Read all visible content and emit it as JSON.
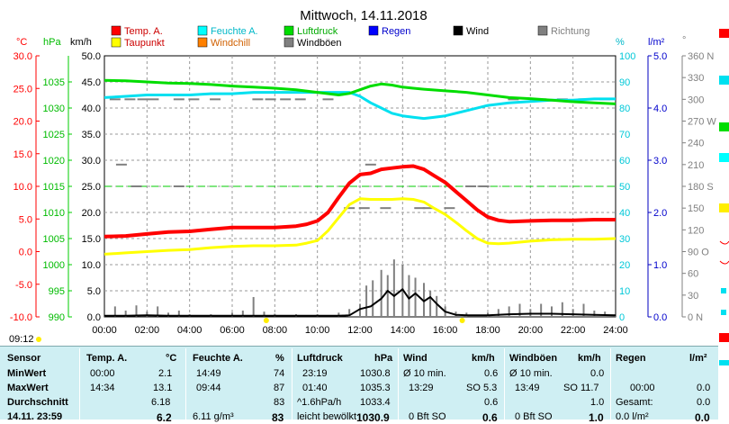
{
  "chart_data": {
    "type": "line",
    "title": "Mittwoch, 14.11.2018",
    "axes": {
      "temp": {
        "label": "°C",
        "range": [
          -10,
          30
        ],
        "ticks": [
          "30.0",
          "25.0",
          "20.0",
          "15.0",
          "10.0",
          "5.0",
          "0.0",
          "-5.0",
          "-10.0"
        ],
        "color": "#ff0000"
      },
      "pressure": {
        "label": "hPa",
        "range": [
          990,
          1040
        ],
        "ticks": [
          "1035",
          "1030",
          "1025",
          "1020",
          "1015",
          "1010",
          "1005",
          "1000",
          "995",
          "990"
        ],
        "color": "#00cc00"
      },
      "wind": {
        "label": "km/h",
        "range": [
          0,
          50
        ],
        "ticks": [
          "50.0",
          "45.0",
          "40.0",
          "35.0",
          "30.0",
          "25.0",
          "20.0",
          "15.0",
          "10.0",
          "5.0",
          "0.0"
        ],
        "color": "#000000"
      },
      "humidity": {
        "label": "%",
        "range": [
          0,
          100
        ],
        "ticks": [
          "100",
          "90",
          "80",
          "70",
          "60",
          "50",
          "40",
          "30",
          "20",
          "10",
          "0"
        ],
        "color": "#00d0e0"
      },
      "rain": {
        "label": "l/m²",
        "range": [
          0,
          5
        ],
        "ticks": [
          "5.0",
          "4.0",
          "3.0",
          "2.0",
          "1.0",
          "0.0"
        ],
        "color": "#0000c0"
      },
      "direction": {
        "label": "°",
        "range": [
          0,
          360
        ],
        "ticks": [
          "360 N",
          "330",
          "300",
          "270 W",
          "240",
          "210",
          "180 S",
          "150",
          "120",
          "90 O",
          "60",
          "30",
          "0 N"
        ],
        "color": "#808080"
      }
    },
    "x_ticks": [
      "00:00",
      "02:00",
      "04:00",
      "06:00",
      "08:00",
      "10:00",
      "12:00",
      "14:00",
      "16:00",
      "18:00",
      "20:00",
      "22:00",
      "24:00"
    ],
    "legend": [
      {
        "name": "Temp. A.",
        "color": "#ff0000"
      },
      {
        "name": "Taupunkt",
        "color": "#ffff00"
      },
      {
        "name": "Feuchte A.",
        "color": "#00ffff"
      },
      {
        "name": "Windchill",
        "color": "#ff8000"
      },
      {
        "name": "Luftdruck",
        "color": "#00dd00"
      },
      {
        "name": "Windböen",
        "color": "#808080"
      },
      {
        "name": "Regen",
        "color": "#0000ff"
      },
      {
        "name": "Wind",
        "color": "#000000"
      },
      {
        "name": "Richtung",
        "color": "#808080"
      }
    ],
    "series": [
      {
        "name": "Temp. A.",
        "axis": "temp",
        "color": "#ff0000",
        "x": [
          0,
          1,
          2,
          3,
          4,
          5,
          6,
          7,
          8,
          9,
          9.5,
          10,
          10.5,
          11,
          11.5,
          12,
          12.5,
          13,
          13.5,
          14,
          14.5,
          15,
          15.5,
          16,
          16.5,
          17,
          17.5,
          18,
          18.5,
          19,
          20,
          21,
          22,
          23,
          24
        ],
        "y": [
          2.3,
          2.4,
          2.7,
          3.0,
          3.1,
          3.4,
          3.7,
          3.7,
          3.7,
          3.9,
          4.2,
          4.7,
          6.0,
          8.3,
          10.5,
          11.8,
          12.0,
          12.6,
          12.8,
          13.0,
          13.1,
          12.6,
          11.6,
          10.6,
          9.2,
          7.8,
          6.4,
          5.3,
          4.8,
          4.6,
          4.7,
          4.8,
          4.8,
          4.9,
          4.9
        ]
      },
      {
        "name": "Taupunkt",
        "axis": "temp",
        "color": "#ffff00",
        "x": [
          0,
          1,
          2,
          3,
          4,
          5,
          6,
          7,
          8,
          9,
          9.5,
          10,
          10.5,
          11,
          11.5,
          12,
          12.5,
          13,
          13.5,
          14,
          14.5,
          15,
          15.5,
          16,
          16.5,
          17,
          17.5,
          18,
          18.5,
          19,
          20,
          21,
          22,
          23,
          24
        ],
        "y": [
          -0.4,
          -0.2,
          0.0,
          0.2,
          0.3,
          0.6,
          0.8,
          0.9,
          0.9,
          1.0,
          1.3,
          1.7,
          3.2,
          5.2,
          7.2,
          8.1,
          8.0,
          8.0,
          8.0,
          8.1,
          8.0,
          7.6,
          6.6,
          5.7,
          4.5,
          3.2,
          2.0,
          1.3,
          1.2,
          1.3,
          1.6,
          1.8,
          1.9,
          1.9,
          2.0
        ]
      },
      {
        "name": "Feuchte A.",
        "axis": "humidity",
        "color": "#00e0f0",
        "x": [
          0,
          1,
          2,
          3,
          4,
          5,
          6,
          7,
          8,
          9,
          10,
          10.5,
          11,
          11.5,
          12,
          12.5,
          13,
          13.5,
          14,
          14.5,
          15,
          15.5,
          16,
          16.5,
          17,
          18,
          19,
          20,
          21,
          22,
          23,
          24
        ],
        "y": [
          84,
          84.5,
          85,
          85,
          85,
          85.5,
          85.5,
          86,
          86,
          86,
          86,
          86,
          86,
          86,
          84.5,
          82,
          80,
          78,
          77,
          76.5,
          76,
          76.5,
          77,
          78,
          79,
          81,
          82,
          82.5,
          83,
          83,
          83.5,
          83.5
        ]
      },
      {
        "name": "Luftdruck",
        "axis": "pressure",
        "color": "#00dd00",
        "x": [
          0,
          1,
          2,
          3,
          4,
          5,
          6,
          7,
          8,
          9,
          10,
          11,
          11.5,
          12,
          12.5,
          13,
          13.5,
          14,
          14.5,
          15,
          16,
          17,
          18,
          19,
          20,
          21,
          22,
          23,
          24
        ],
        "y": [
          1035.3,
          1035.2,
          1035.0,
          1034.8,
          1034.7,
          1034.5,
          1034.2,
          1034.0,
          1033.8,
          1033.5,
          1033.0,
          1032.5,
          1032.8,
          1033.5,
          1034.2,
          1034.6,
          1034.4,
          1034.0,
          1033.8,
          1033.6,
          1033.3,
          1033.0,
          1032.5,
          1032.0,
          1031.8,
          1031.5,
          1031.2,
          1031.0,
          1030.8
        ]
      },
      {
        "name": "Wind",
        "axis": "wind",
        "color": "#000000",
        "x": [
          0,
          1,
          2,
          3,
          4,
          5,
          6,
          7,
          8,
          9,
          10,
          11,
          11.5,
          12,
          12.5,
          13,
          13.3,
          13.6,
          14,
          14.3,
          14.6,
          15,
          15.3,
          15.6,
          16,
          16.5,
          17,
          18,
          19,
          20,
          21,
          22,
          23,
          24
        ],
        "y": [
          0.2,
          0.2,
          0.3,
          0.2,
          0.2,
          0.2,
          0.2,
          0.2,
          0.2,
          0.2,
          0.2,
          0.2,
          0.3,
          1.5,
          2.0,
          3.5,
          5.0,
          4.0,
          5.3,
          3.5,
          4.5,
          3.0,
          3.8,
          2.5,
          1.0,
          0.4,
          0.3,
          0.3,
          0.5,
          0.6,
          0.6,
          0.5,
          0.4,
          0.3
        ]
      },
      {
        "name": "Windböen",
        "axis": "wind",
        "color": "#808080",
        "x": [
          0,
          0.5,
          1,
          1.5,
          2,
          2.5,
          3,
          3.5,
          4,
          5,
          6,
          6.5,
          7,
          7.5,
          8,
          9,
          10,
          11,
          11.5,
          12,
          12.3,
          12.6,
          13,
          13.3,
          13.6,
          14,
          14.3,
          14.6,
          15,
          15.3,
          15.6,
          16,
          16.5,
          17,
          18,
          18.5,
          19,
          19.5,
          20,
          20.5,
          21,
          21.5,
          22,
          22.5,
          23,
          23.5,
          24
        ],
        "y": [
          1.5,
          2.0,
          1.2,
          2.2,
          1.0,
          2.0,
          0.8,
          1.2,
          0.5,
          0.5,
          0.8,
          1.2,
          3.8,
          1.0,
          0.6,
          0.5,
          0.5,
          0.8,
          1.5,
          2.5,
          6.0,
          7.0,
          9.0,
          8.0,
          11.0,
          10.0,
          8.0,
          7.5,
          6.5,
          5.0,
          4.0,
          2.0,
          1.0,
          0.8,
          0.8,
          1.5,
          2.0,
          2.5,
          1.5,
          2.5,
          2.0,
          2.8,
          1.5,
          2.5,
          1.2,
          1.0,
          0.8
        ]
      }
    ]
  },
  "footer": {
    "time": "09:12"
  },
  "table": {
    "row_labels": [
      "Sensor",
      "MinWert",
      "MaxWert",
      "Durchschnitt",
      "14.11. 23:59"
    ],
    "temp": {
      "header": "Temp. A.",
      "unit": "°C",
      "rows": [
        [
          "00:00",
          "2.1"
        ],
        [
          "14:34",
          "13.1"
        ],
        [
          "",
          "6.18"
        ],
        [
          "",
          "6.2"
        ]
      ]
    },
    "humidity": {
      "header": "Feuchte A.",
      "unit": "%",
      "rows": [
        [
          "14:49",
          "74"
        ],
        [
          "09:44",
          "87"
        ],
        [
          "",
          "83"
        ],
        [
          "6.11 g/m³",
          "83"
        ]
      ]
    },
    "pressure": {
      "header": "Luftdruck",
      "unit": "hPa",
      "rows": [
        [
          "23:19",
          "1030.8"
        ],
        [
          "01:40",
          "1035.3"
        ],
        [
          "^1.6hPa/h",
          "1033.4"
        ],
        [
          "leicht bewölkt",
          "1030.9"
        ]
      ]
    },
    "wind": {
      "header": "Wind",
      "unit": "km/h",
      "rows": [
        [
          "Ø 10 min.",
          "",
          " 0.6"
        ],
        [
          "13:29",
          "SO 5.3",
          ""
        ],
        [
          "",
          "",
          "0.6"
        ],
        [
          "0 Bft SO",
          "",
          "0.6"
        ]
      ]
    },
    "gust": {
      "header": "Windböen",
      "unit": "km/h",
      "rows": [
        [
          "Ø 10 min.",
          "",
          "0.0"
        ],
        [
          "13:49",
          "SO 11.7",
          ""
        ],
        [
          "",
          "",
          "1.0"
        ],
        [
          "0 Bft SO",
          "",
          "1.0"
        ]
      ]
    },
    "rain": {
      "header": "Regen",
      "unit": "l/m²",
      "rows": [
        [
          "",
          ""
        ],
        [
          "00:00",
          "0.0"
        ],
        [
          "Gesamt:",
          "0.0"
        ],
        [
          "0.0 l/m²",
          "0.0"
        ]
      ]
    }
  }
}
